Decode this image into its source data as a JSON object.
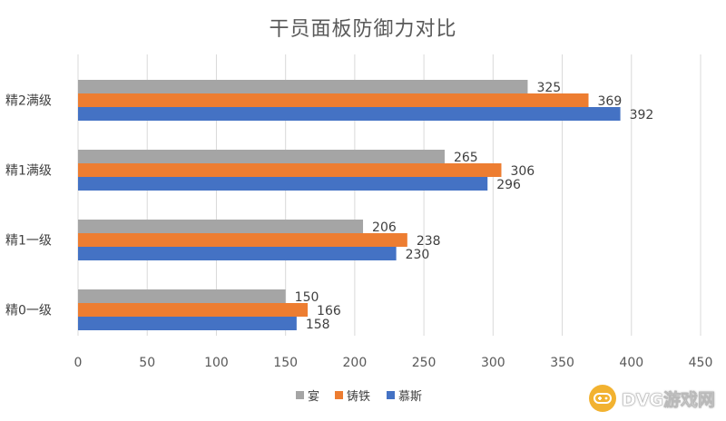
{
  "chart_data": {
    "type": "bar",
    "orientation": "horizontal",
    "title": "干员面板防御力对比",
    "categories": [
      "精2满级",
      "精1满级",
      "精1一级",
      "精0一级"
    ],
    "series": [
      {
        "name": "宴",
        "color": "#a5a5a5",
        "values": [
          325,
          265,
          206,
          150
        ]
      },
      {
        "name": "铸铁",
        "color": "#ed7d31",
        "values": [
          369,
          306,
          238,
          166
        ]
      },
      {
        "name": "慕斯",
        "color": "#4472c4",
        "values": [
          392,
          296,
          230,
          158
        ]
      }
    ],
    "xlim": [
      0,
      450
    ],
    "xticks": [
      0,
      50,
      100,
      150,
      200,
      250,
      300,
      350,
      400,
      450
    ],
    "grid": true,
    "legend_position": "bottom"
  },
  "watermark": {
    "text": "DVG游戏网",
    "color": "#f2b230"
  }
}
